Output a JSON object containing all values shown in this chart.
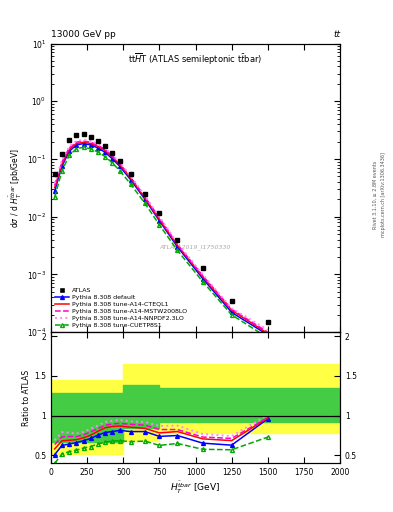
{
  "header_left": "13000 GeV pp",
  "header_right": "tt",
  "right_label1": "Rivet 3.1.10, ≥ 2.8M events",
  "right_label2": "mcplots.cern.ch [arXiv:1306.3436]",
  "watermark": "ATLAS_2019_I1750330",
  "xlim": [
    0,
    2000
  ],
  "ylim_main": [
    0.0001,
    10
  ],
  "atlas_x": [
    25,
    75,
    125,
    175,
    225,
    275,
    325,
    375,
    425,
    475,
    550,
    650,
    750,
    875,
    1050,
    1250,
    1500
  ],
  "atlas_y": [
    0.055,
    0.12,
    0.21,
    0.265,
    0.27,
    0.245,
    0.205,
    0.165,
    0.125,
    0.092,
    0.055,
    0.025,
    0.0115,
    0.004,
    0.0013,
    0.00035,
    0.00015
  ],
  "py_default_y": [
    0.028,
    0.075,
    0.135,
    0.175,
    0.185,
    0.175,
    0.155,
    0.13,
    0.1,
    0.075,
    0.044,
    0.02,
    0.0085,
    0.003,
    0.00085,
    0.00022,
    9e-05
  ],
  "py_A14_CTEQ_y": [
    0.032,
    0.082,
    0.145,
    0.185,
    0.195,
    0.185,
    0.165,
    0.14,
    0.108,
    0.08,
    0.047,
    0.021,
    0.009,
    0.0032,
    0.00092,
    0.00024,
    9.5e-05
  ],
  "py_A14_MSTW_y": [
    0.035,
    0.088,
    0.155,
    0.195,
    0.205,
    0.195,
    0.172,
    0.145,
    0.112,
    0.083,
    0.049,
    0.022,
    0.0095,
    0.0033,
    0.00095,
    0.00025,
    0.0001
  ],
  "py_A14_NNPDF_y": [
    0.038,
    0.095,
    0.165,
    0.205,
    0.215,
    0.205,
    0.18,
    0.152,
    0.117,
    0.087,
    0.051,
    0.023,
    0.01,
    0.0035,
    0.001,
    0.00026,
    0.00011
  ],
  "py_CUETP8S1_y": [
    0.022,
    0.062,
    0.115,
    0.15,
    0.16,
    0.15,
    0.132,
    0.11,
    0.085,
    0.063,
    0.037,
    0.017,
    0.0072,
    0.0026,
    0.00075,
    0.0002,
    8e-05
  ],
  "ratio_default": [
    0.51,
    0.625,
    0.643,
    0.66,
    0.685,
    0.714,
    0.756,
    0.788,
    0.8,
    0.815,
    0.8,
    0.8,
    0.739,
    0.75,
    0.654,
    0.629,
    0.96
  ],
  "ratio_A14_CTEQ": [
    0.582,
    0.683,
    0.69,
    0.698,
    0.722,
    0.755,
    0.805,
    0.848,
    0.864,
    0.869,
    0.855,
    0.84,
    0.783,
    0.8,
    0.708,
    0.686,
    0.97
  ],
  "ratio_A14_MSTW": [
    0.636,
    0.733,
    0.738,
    0.736,
    0.759,
    0.796,
    0.839,
    0.879,
    0.896,
    0.902,
    0.891,
    0.88,
    0.826,
    0.825,
    0.731,
    0.714,
    0.975
  ],
  "ratio_A14_NNPDF": [
    0.691,
    0.792,
    0.786,
    0.773,
    0.796,
    0.837,
    0.878,
    0.921,
    0.936,
    0.946,
    0.927,
    0.92,
    0.87,
    0.875,
    0.769,
    0.743,
    1.01
  ],
  "ratio_CUETP8S1": [
    0.4,
    0.517,
    0.548,
    0.566,
    0.593,
    0.612,
    0.644,
    0.667,
    0.68,
    0.685,
    0.673,
    0.68,
    0.626,
    0.65,
    0.577,
    0.571,
    0.73
  ],
  "band_yellow_edges": [
    0,
    500,
    750,
    1000,
    2000
  ],
  "band_yellow_lo": [
    0.52,
    0.68,
    0.78,
    0.78,
    0.78
  ],
  "band_yellow_hi": [
    1.45,
    1.65,
    1.65,
    1.65,
    1.65
  ],
  "band_green_edges": [
    0,
    500,
    750,
    1000,
    2000
  ],
  "band_green_lo": [
    0.67,
    0.85,
    0.92,
    0.92,
    0.92
  ],
  "band_green_hi": [
    1.28,
    1.38,
    1.35,
    1.35,
    1.35
  ],
  "color_atlas": "#000000",
  "color_default": "#0000ff",
  "color_A14_CTEQ": "#ff0000",
  "color_A14_MSTW": "#ff00cc",
  "color_A14_NNPDF": "#ff88ff",
  "color_CUETP8S1": "#00aa00",
  "color_band_yellow": "#ffff44",
  "color_band_green": "#44cc44",
  "legend_entries": [
    "ATLAS",
    "Pythia 8.308 default",
    "Pythia 8.308 tune-A14-CTEQL1",
    "Pythia 8.308 tune-A14-MSTW2008LO",
    "Pythia 8.308 tune-A14-NNPDF2.3LO",
    "Pythia 8.308 tune-CUETP8S1"
  ]
}
